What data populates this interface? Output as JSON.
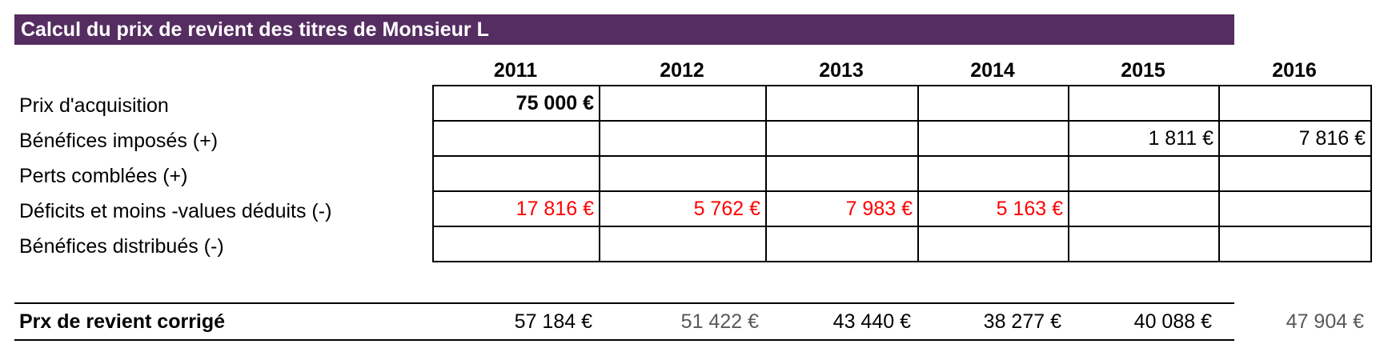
{
  "title": "Calcul du prix de revient des titres de Monsieur L",
  "years": [
    "2011",
    "2012",
    "2013",
    "2014",
    "2015",
    "2016"
  ],
  "row_labels": {
    "acquisition": "Prix d'acquisition",
    "benefices_imposes": "Bénéfices imposés (+)",
    "pertes_comblees": "Perts comblées (+)",
    "deficits": "Déficits et moins -values déduits (-)",
    "benefices_distribues": "Bénéfices distribués (-)"
  },
  "values": {
    "acquisition": [
      "75 000 €",
      "",
      "",
      "",
      "",
      ""
    ],
    "benefices_imposes": [
      "",
      "",
      "",
      "",
      "1 811 €",
      "7 816 €"
    ],
    "pertes_comblees": [
      "",
      "",
      "",
      "",
      "",
      ""
    ],
    "deficits": [
      "17 816 €",
      "5 762 €",
      "7 983 €",
      "5 163 €",
      "",
      ""
    ],
    "benefices_distribues": [
      "",
      "",
      "",
      "",
      "",
      ""
    ]
  },
  "total": {
    "label": "Prx de revient corrigé",
    "values": [
      "57 184 €",
      "51 422 €",
      "43 440 €",
      "38 277 €",
      "40 088 €",
      "47 904 €"
    ]
  },
  "colors": {
    "title_bg": "#552d61",
    "title_text": "#ffffff",
    "negative": "#ff0000",
    "muted": "#595959"
  }
}
